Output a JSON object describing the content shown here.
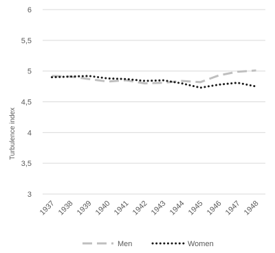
{
  "chart_data": {
    "type": "line",
    "title": "",
    "xlabel": "",
    "ylabel": "Turbulence index",
    "categories": [
      "1937",
      "1938",
      "1939",
      "1940",
      "1941",
      "1942",
      "1943",
      "1944",
      "1945",
      "1946",
      "1947",
      "1948"
    ],
    "ylim": [
      3,
      6
    ],
    "yticks": [
      "3",
      "3,5",
      "4",
      "4,5",
      "5",
      "5,5",
      "6"
    ],
    "grid": true,
    "legend_position": "bottom",
    "series": [
      {
        "name": "Men",
        "style": "dashed",
        "color": "#bfbfbf",
        "values": [
          4.92,
          4.91,
          4.87,
          4.83,
          4.85,
          4.8,
          4.81,
          4.84,
          4.82,
          4.93,
          4.99,
          5.01
        ]
      },
      {
        "name": "Women",
        "style": "dotted",
        "color": "#1a1a1a",
        "values": [
          4.9,
          4.91,
          4.92,
          4.88,
          4.87,
          4.84,
          4.85,
          4.8,
          4.73,
          4.78,
          4.81,
          4.75
        ]
      }
    ]
  }
}
